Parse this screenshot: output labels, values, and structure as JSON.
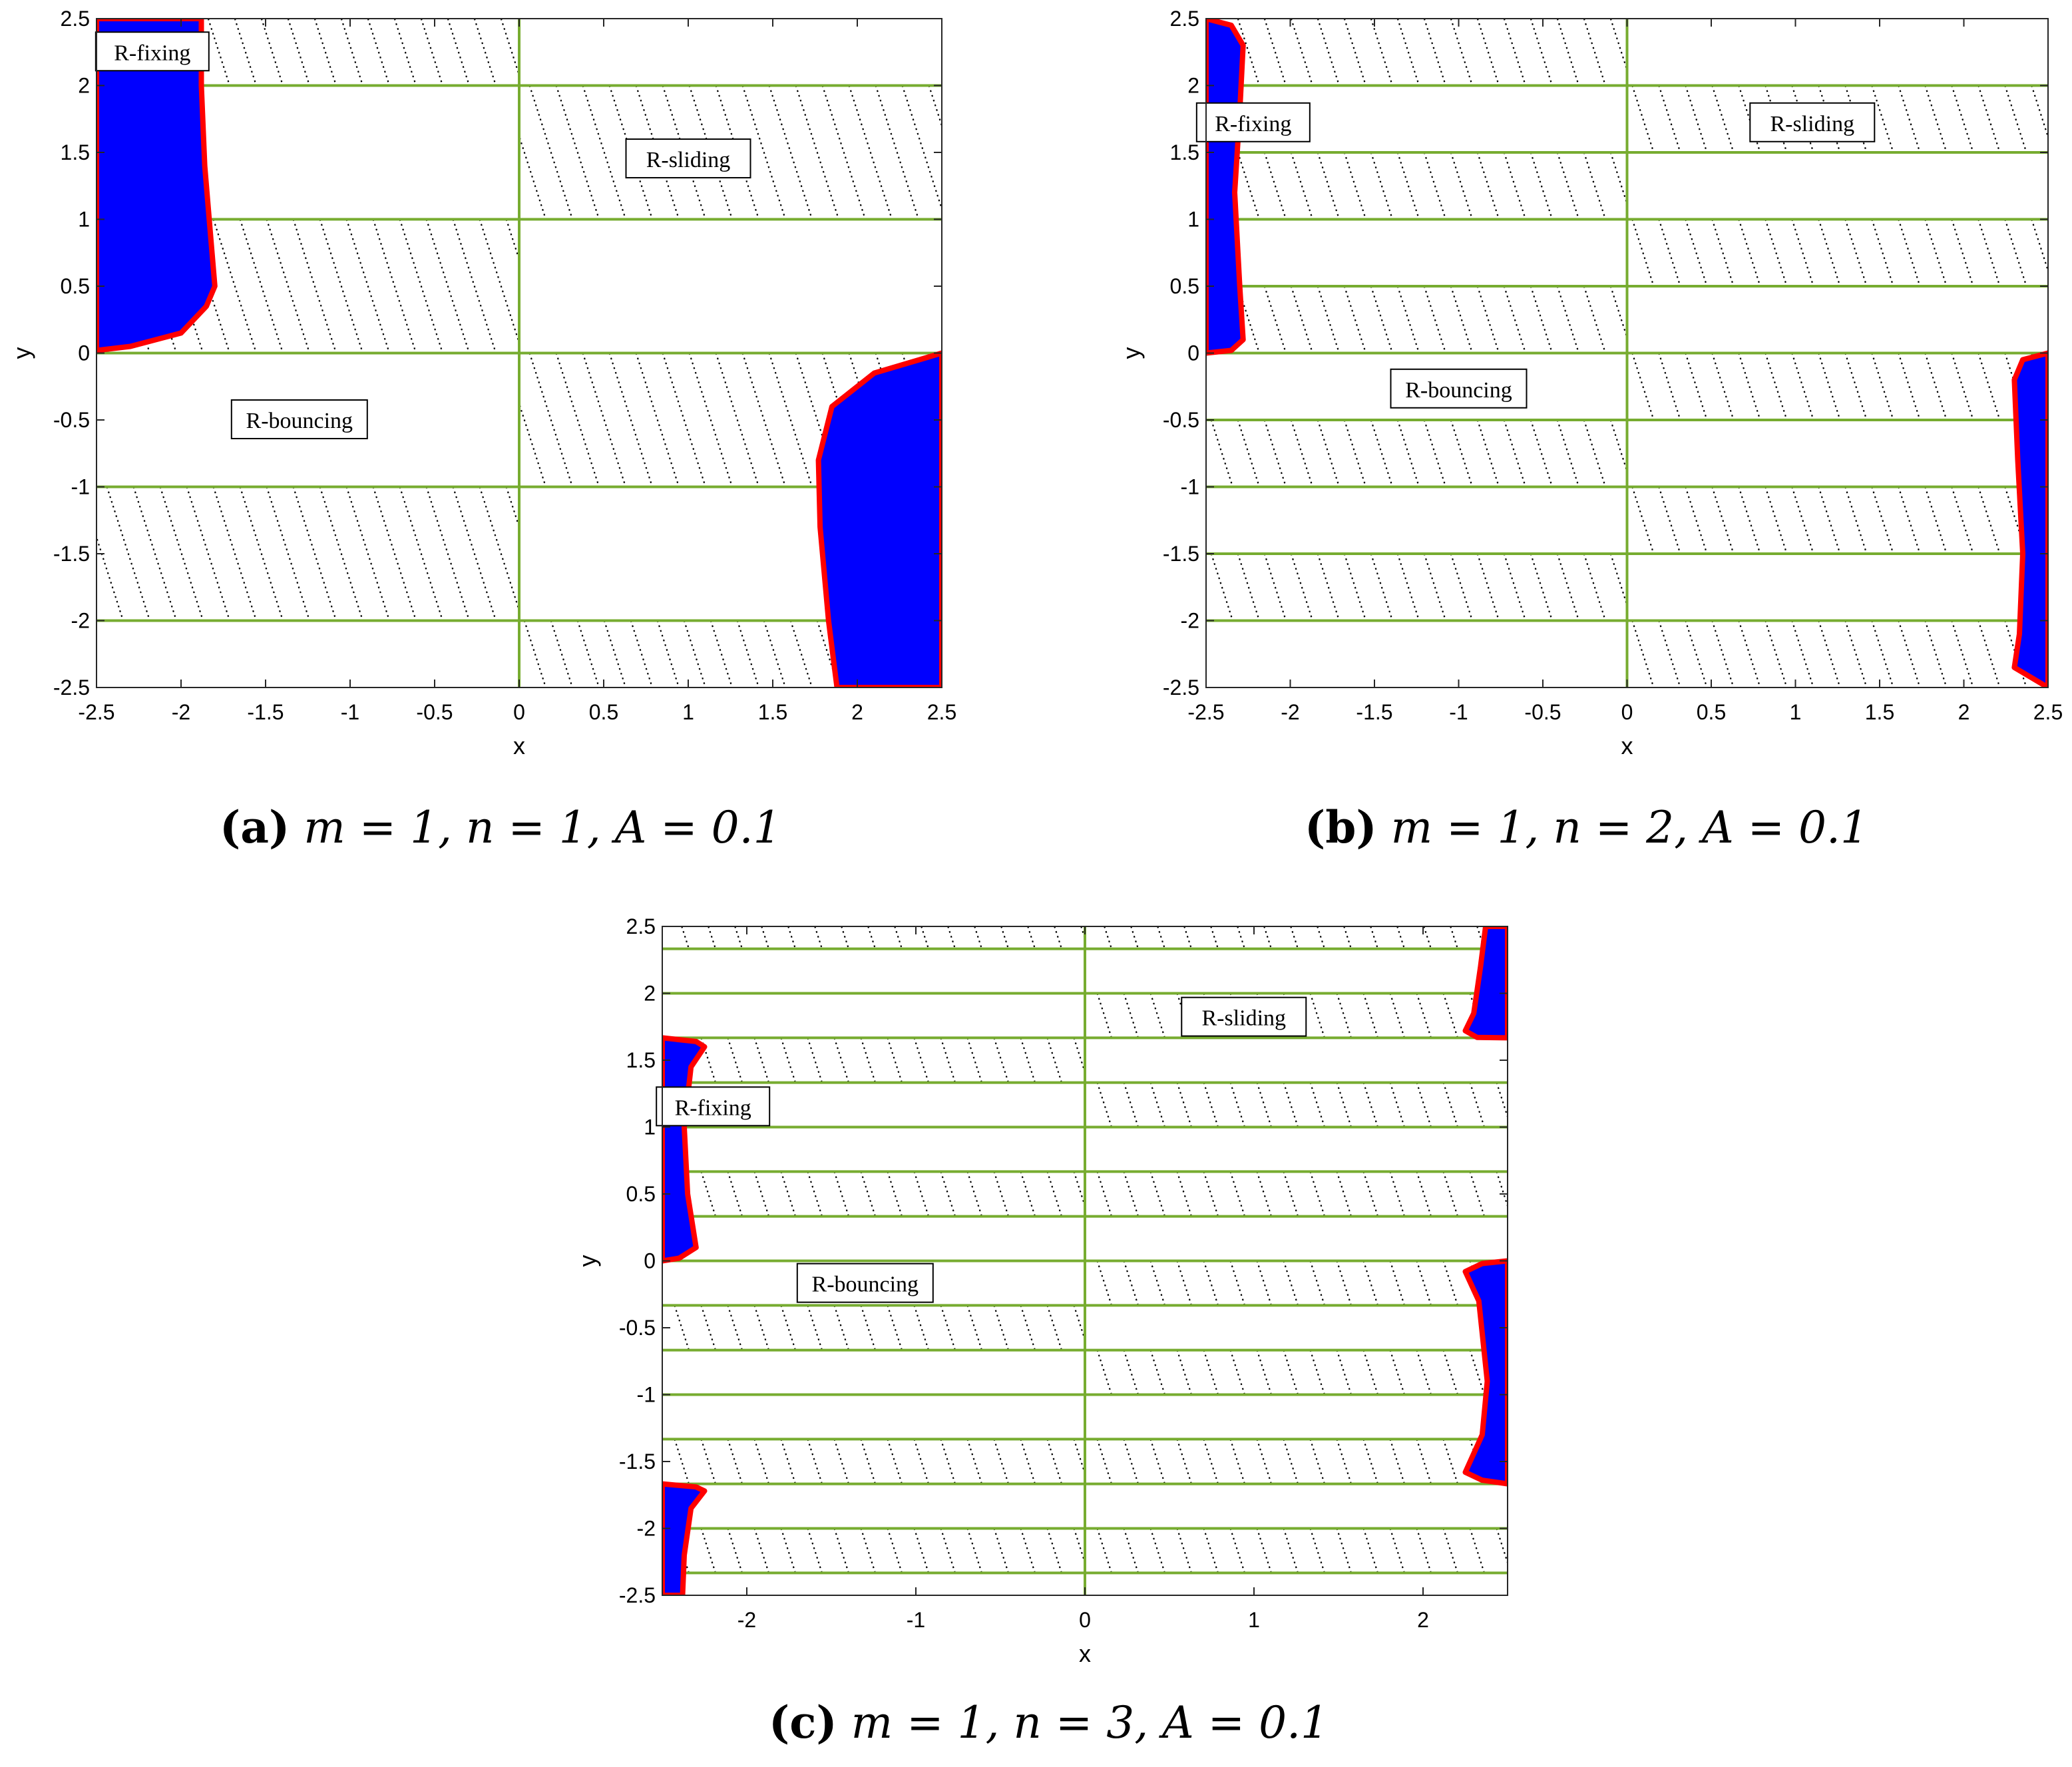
{
  "chart_data": [
    {
      "id": "a",
      "type": "scatter",
      "xlabel": "x",
      "ylabel": "y",
      "xlim": [
        -2.5,
        2.5
      ],
      "ylim": [
        -2.5,
        2.5
      ],
      "xticks": [
        -2.5,
        -2,
        -1.5,
        -1,
        -0.5,
        0,
        0.5,
        1,
        1.5,
        2,
        2.5
      ],
      "yticks": [
        -2.5,
        -2,
        -1.5,
        -1,
        -0.5,
        0,
        0.5,
        1,
        1.5,
        2,
        2.5
      ],
      "xtick_labels": [
        "-2.5",
        "-2",
        "-1.5",
        "-1",
        "-0.5",
        "0",
        "0.5",
        "1",
        "1.5",
        "2",
        "2.5"
      ],
      "ytick_labels": [
        "-2.5",
        "-2",
        "-1.5",
        "-1",
        "-0.5",
        "0",
        "0.5",
        "1",
        "1.5",
        "2",
        "2.5"
      ],
      "green_hlines": [
        -2,
        -1,
        0,
        1,
        2
      ],
      "green_vline": 0,
      "band_height": 1,
      "hatched_cells": [
        {
          "x": [
            -2.5,
            0
          ],
          "y": [
            2,
            2.5
          ]
        },
        {
          "x": [
            -2.5,
            0
          ],
          "y": [
            0,
            1
          ]
        },
        {
          "x": [
            -2.5,
            0
          ],
          "y": [
            -2,
            -1
          ]
        },
        {
          "x": [
            0,
            2.5
          ],
          "y": [
            1,
            2
          ]
        },
        {
          "x": [
            0,
            2.5
          ],
          "y": [
            -1,
            0
          ]
        },
        {
          "x": [
            0,
            2.5
          ],
          "y": [
            -2.5,
            -2
          ]
        }
      ],
      "blue_regions": [
        [
          [
            -2.5,
            2.5
          ],
          [
            -1.88,
            2.5
          ],
          [
            -1.88,
            2.0
          ],
          [
            -1.86,
            1.4
          ],
          [
            -1.82,
            0.8
          ],
          [
            -1.8,
            0.5
          ],
          [
            -1.85,
            0.35
          ],
          [
            -2.0,
            0.15
          ],
          [
            -2.3,
            0.05
          ],
          [
            -2.5,
            0.02
          ]
        ],
        [
          [
            2.5,
            0
          ],
          [
            2.1,
            -0.15
          ],
          [
            1.85,
            -0.4
          ],
          [
            1.77,
            -0.8
          ],
          [
            1.78,
            -1.3
          ],
          [
            1.83,
            -2.0
          ],
          [
            1.88,
            -2.5
          ],
          [
            2.5,
            -2.5
          ]
        ]
      ],
      "annotations": [
        {
          "text": "R-fixing",
          "x": -2.17,
          "y": 2.25
        },
        {
          "text": "R-sliding",
          "x": 1.0,
          "y": 1.45
        },
        {
          "text": "R-bouncing",
          "x": -1.3,
          "y": -0.5
        }
      ]
    },
    {
      "id": "b",
      "type": "scatter",
      "xlabel": "x",
      "ylabel": "y",
      "xlim": [
        -2.5,
        2.5
      ],
      "ylim": [
        -2.5,
        2.5
      ],
      "xticks": [
        -2.5,
        -2,
        -1.5,
        -1,
        -0.5,
        0,
        0.5,
        1,
        1.5,
        2,
        2.5
      ],
      "yticks": [
        -2.5,
        -2,
        -1.5,
        -1,
        -0.5,
        0,
        0.5,
        1,
        1.5,
        2,
        2.5
      ],
      "xtick_labels": [
        "-2.5",
        "-2",
        "-1.5",
        "-1",
        "-0.5",
        "0",
        "0.5",
        "1",
        "1.5",
        "2",
        "2.5"
      ],
      "ytick_labels": [
        "-2.5",
        "-2",
        "-1.5",
        "-1",
        "-0.5",
        "0",
        "0.5",
        "1",
        "1.5",
        "2",
        "2.5"
      ],
      "green_hlines": [
        -2,
        -1.5,
        -1,
        -0.5,
        0,
        0.5,
        1,
        1.5,
        2
      ],
      "green_vline": 0,
      "band_height": 0.5,
      "hatched_cells": [
        {
          "x": [
            -2.5,
            0
          ],
          "y": [
            2,
            2.5
          ]
        },
        {
          "x": [
            -2.5,
            0
          ],
          "y": [
            1,
            1.5
          ]
        },
        {
          "x": [
            -2.5,
            0
          ],
          "y": [
            0,
            0.5
          ]
        },
        {
          "x": [
            -2.5,
            0
          ],
          "y": [
            -1,
            -0.5
          ]
        },
        {
          "x": [
            -2.5,
            0
          ],
          "y": [
            -2,
            -1.5
          ]
        },
        {
          "x": [
            0,
            2.5
          ],
          "y": [
            1.5,
            2
          ]
        },
        {
          "x": [
            0,
            2.5
          ],
          "y": [
            0.5,
            1
          ]
        },
        {
          "x": [
            0,
            2.5
          ],
          "y": [
            -0.5,
            0
          ]
        },
        {
          "x": [
            0,
            2.5
          ],
          "y": [
            -1.5,
            -1
          ]
        },
        {
          "x": [
            0,
            2.5
          ],
          "y": [
            -2.5,
            -2
          ]
        }
      ],
      "blue_regions": [
        [
          [
            -2.5,
            2.5
          ],
          [
            -2.35,
            2.45
          ],
          [
            -2.28,
            2.3
          ],
          [
            -2.3,
            1.8
          ],
          [
            -2.33,
            1.2
          ],
          [
            -2.3,
            0.5
          ],
          [
            -2.28,
            0.1
          ],
          [
            -2.35,
            0.02
          ],
          [
            -2.5,
            0.0
          ]
        ],
        [
          [
            2.5,
            0
          ],
          [
            2.35,
            -0.05
          ],
          [
            2.3,
            -0.2
          ],
          [
            2.32,
            -0.8
          ],
          [
            2.35,
            -1.5
          ],
          [
            2.33,
            -2.1
          ],
          [
            2.3,
            -2.35
          ],
          [
            2.5,
            -2.5
          ]
        ]
      ],
      "annotations": [
        {
          "text": "R-fixing",
          "x": -2.22,
          "y": 1.72
        },
        {
          "text": "R-sliding",
          "x": 1.1,
          "y": 1.72
        },
        {
          "text": "R-bouncing",
          "x": -1.0,
          "y": -0.27
        }
      ]
    },
    {
      "id": "c",
      "type": "scatter",
      "xlabel": "x",
      "ylabel": "y",
      "xlim": [
        -2.5,
        2.5
      ],
      "ylim": [
        -2.5,
        2.5
      ],
      "xticks": [
        -2,
        -1,
        0,
        1,
        2
      ],
      "yticks": [
        -2.5,
        -2,
        -1.5,
        -1,
        -0.5,
        0,
        0.5,
        1,
        1.5,
        2,
        2.5
      ],
      "xtick_labels": [
        "-2",
        "-1",
        "0",
        "1",
        "2"
      ],
      "ytick_labels": [
        "-2.5",
        "-2",
        "-1.5",
        "-1",
        "-0.5",
        "0",
        "0.5",
        "1",
        "1.5",
        "2",
        "2.5"
      ],
      "green_hlines": [
        -2.333,
        -2,
        -1.667,
        -1.333,
        -1,
        -0.667,
        -0.333,
        0,
        0.333,
        0.667,
        1,
        1.333,
        1.667,
        2,
        2.333
      ],
      "green_vline": 0,
      "band_height": 0.3333,
      "hatched_cells": [
        {
          "x": [
            -2.5,
            0
          ],
          "y": [
            2.333,
            2.5
          ]
        },
        {
          "x": [
            -2.5,
            0
          ],
          "y": [
            1.333,
            1.667
          ]
        },
        {
          "x": [
            -2.5,
            0
          ],
          "y": [
            0.333,
            0.667
          ]
        },
        {
          "x": [
            -2.5,
            0
          ],
          "y": [
            -0.667,
            -0.333
          ]
        },
        {
          "x": [
            -2.5,
            0
          ],
          "y": [
            -1.667,
            -1.333
          ]
        },
        {
          "x": [
            -2.5,
            0
          ],
          "y": [
            -2.333,
            -2
          ]
        },
        {
          "x": [
            0,
            2.5
          ],
          "y": [
            2.333,
            2.5
          ]
        },
        {
          "x": [
            0,
            2.5
          ],
          "y": [
            1.667,
            2
          ]
        },
        {
          "x": [
            0,
            2.5
          ],
          "y": [
            1,
            1.333
          ]
        },
        {
          "x": [
            0,
            2.5
          ],
          "y": [
            0.333,
            0.667
          ]
        },
        {
          "x": [
            0,
            2.5
          ],
          "y": [
            -0.333,
            0
          ]
        },
        {
          "x": [
            0,
            2.5
          ],
          "y": [
            -1,
            -0.667
          ]
        },
        {
          "x": [
            0,
            2.5
          ],
          "y": [
            -1.667,
            -1.333
          ]
        },
        {
          "x": [
            0,
            2.5
          ],
          "y": [
            -2.333,
            -2
          ]
        }
      ],
      "blue_regions": [
        [
          [
            -2.5,
            1.667
          ],
          [
            -2.3,
            1.64
          ],
          [
            -2.25,
            1.6
          ],
          [
            -2.33,
            1.45
          ],
          [
            -2.37,
            1.0
          ],
          [
            -2.35,
            0.5
          ],
          [
            -2.3,
            0.1
          ],
          [
            -2.4,
            0.02
          ],
          [
            -2.5,
            0.0
          ]
        ],
        [
          [
            -2.5,
            -1.667
          ],
          [
            -2.3,
            -1.69
          ],
          [
            -2.25,
            -1.72
          ],
          [
            -2.33,
            -1.85
          ],
          [
            -2.37,
            -2.2
          ],
          [
            -2.38,
            -2.5
          ],
          [
            -2.5,
            -2.5
          ]
        ],
        [
          [
            2.5,
            2.5
          ],
          [
            2.37,
            2.5
          ],
          [
            2.34,
            2.2
          ],
          [
            2.3,
            1.85
          ],
          [
            2.25,
            1.72
          ],
          [
            2.32,
            1.67
          ],
          [
            2.5,
            1.667
          ]
        ],
        [
          [
            2.5,
            0
          ],
          [
            2.35,
            -0.02
          ],
          [
            2.25,
            -0.08
          ],
          [
            2.33,
            -0.3
          ],
          [
            2.38,
            -0.9
          ],
          [
            2.35,
            -1.3
          ],
          [
            2.25,
            -1.58
          ],
          [
            2.35,
            -1.64
          ],
          [
            2.5,
            -1.667
          ]
        ]
      ],
      "annotations": [
        {
          "text": "R-sliding",
          "x": 0.94,
          "y": 1.82
        },
        {
          "text": "R-fixing",
          "x": -2.2,
          "y": 1.15
        },
        {
          "text": "R-bouncing",
          "x": -1.3,
          "y": -0.17
        }
      ]
    }
  ],
  "captions": [
    {
      "letter": "(a)",
      "formula": "m = 1, n = 1, A = 0.1"
    },
    {
      "letter": "(b)",
      "formula": "m = 1, n = 2, A = 0.1"
    },
    {
      "letter": "(c)",
      "formula": "m = 1, n = 3, A = 0.1"
    }
  ],
  "colors": {
    "grid_green": "#77ac30",
    "region_blue": "#0000ff",
    "boundary_red": "#ff0000",
    "hatch": "#000000"
  }
}
